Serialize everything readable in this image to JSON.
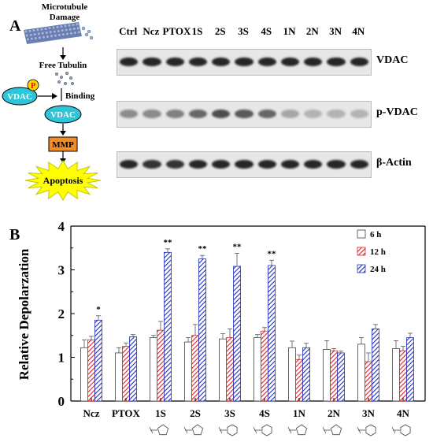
{
  "panel_a": {
    "letter": "A",
    "pathway": {
      "microtubule_damage": "Microtubule\nDamage",
      "free_tubulin": "Free Tubulin",
      "phospho_badge": "P",
      "vdac_phospho": "VDAC",
      "binding": "Binding",
      "vdac": "VDAC",
      "mmp": "MMP",
      "apoptosis": "Apoptosis",
      "colors": {
        "vdac_fill": "#2ec5d8",
        "mmp_fill": "#f28c28",
        "apoptosis_fill": "#ffff00",
        "phospho_fill": "#ffd700"
      }
    },
    "lanes": [
      "Ctrl",
      "Ncz",
      "PTOX",
      "1S",
      "2S",
      "3S",
      "4S",
      "1N",
      "2N",
      "3N",
      "4N"
    ],
    "blots": [
      {
        "label": "VDAC",
        "intensities": [
          0.85,
          0.85,
          0.85,
          0.85,
          0.85,
          0.85,
          0.85,
          0.85,
          0.85,
          0.85,
          0.85
        ]
      },
      {
        "label": "p-VDAC",
        "intensities": [
          0.45,
          0.45,
          0.5,
          0.6,
          0.7,
          0.65,
          0.6,
          0.35,
          0.3,
          0.3,
          0.3
        ]
      },
      {
        "label": "β-Actin",
        "intensities": [
          0.85,
          0.8,
          0.8,
          0.85,
          0.85,
          0.85,
          0.85,
          0.85,
          0.85,
          0.85,
          0.85
        ]
      }
    ]
  },
  "panel_b": {
    "letter": "B",
    "chart_data": {
      "type": "bar",
      "ylabel": "Relative Depolarzation",
      "ylim": [
        0,
        4
      ],
      "yticks": [
        "0",
        "1",
        "2",
        "3",
        "4"
      ],
      "categories": [
        "Ncz",
        "PTOX",
        "1S",
        "2S",
        "3S",
        "4S",
        "1N",
        "2N",
        "3N",
        "4N"
      ],
      "series": [
        {
          "name": "6 h",
          "color": "#ffffff",
          "pattern": "none",
          "values": [
            1.22,
            1.1,
            1.45,
            1.35,
            1.42,
            1.45,
            1.22,
            1.18,
            1.3,
            1.2
          ],
          "errors": [
            0.18,
            0.12,
            0.05,
            0.1,
            0.12,
            0.07,
            0.15,
            0.2,
            0.15,
            0.18
          ]
        },
        {
          "name": "12 h",
          "color": "#e02020",
          "pattern": "diagonal",
          "values": [
            1.4,
            1.25,
            1.62,
            1.5,
            1.45,
            1.6,
            0.95,
            1.15,
            0.9,
            1.15
          ],
          "errors": [
            0.08,
            0.08,
            0.2,
            0.25,
            0.2,
            0.08,
            0.1,
            0.05,
            0.2,
            0.1
          ]
        },
        {
          "name": "24 h",
          "color": "#2030c0",
          "pattern": "diagonal",
          "values": [
            1.85,
            1.47,
            3.4,
            3.25,
            3.08,
            3.1,
            1.22,
            1.1,
            1.65,
            1.45
          ],
          "errors": [
            0.1,
            0.05,
            0.08,
            0.08,
            0.3,
            0.12,
            0.1,
            0.04,
            0.1,
            0.1
          ]
        }
      ],
      "annotations": [
        {
          "category": "Ncz",
          "text": "*"
        },
        {
          "category": "1S",
          "text": "**"
        },
        {
          "category": "2S",
          "text": "**"
        },
        {
          "category": "3S",
          "text": "**"
        },
        {
          "category": "4S",
          "text": "**"
        }
      ],
      "legend": "top-right",
      "grid": false
    }
  }
}
